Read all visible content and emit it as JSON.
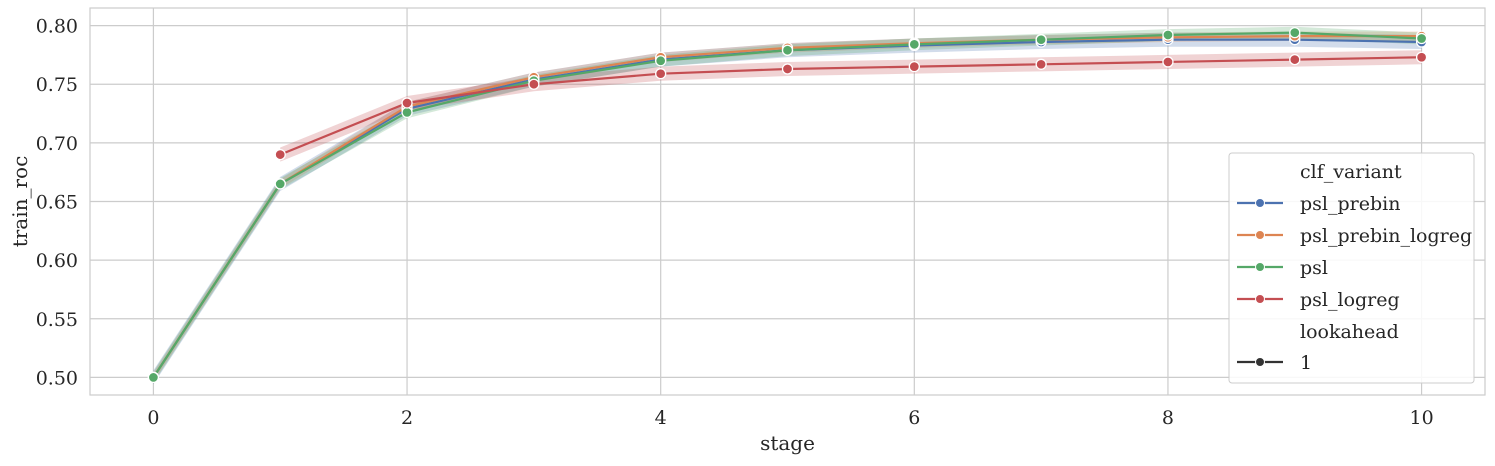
{
  "chart_data": {
    "type": "line",
    "xlabel": "stage",
    "ylabel": "train_roc",
    "xlim": [
      -0.5,
      10.5
    ],
    "ylim": [
      0.485,
      0.815
    ],
    "xticks": [
      0,
      2,
      4,
      6,
      8,
      10
    ],
    "yticks": [
      "0.50",
      "0.55",
      "0.60",
      "0.65",
      "0.70",
      "0.75",
      "0.80"
    ],
    "grid": true,
    "legend": {
      "placement": "lower-right",
      "hue_title": "clf_variant",
      "style_title": "lookahead",
      "style_entries": [
        "1"
      ]
    },
    "series": [
      {
        "name": "psl_prebin",
        "color": "#4c72b0",
        "x": [
          0,
          1,
          2,
          3,
          4,
          5,
          6,
          7,
          8,
          9,
          10
        ],
        "values": [
          0.5,
          0.665,
          0.729,
          0.754,
          0.771,
          0.779,
          0.783,
          0.786,
          0.788,
          0.788,
          0.786
        ],
        "band": 0.006
      },
      {
        "name": "psl_prebin_logreg",
        "color": "#dd8452",
        "x": [
          0,
          1,
          2,
          3,
          4,
          5,
          6,
          7,
          8,
          9,
          10
        ],
        "values": [
          0.5,
          0.665,
          0.731,
          0.756,
          0.773,
          0.781,
          0.785,
          0.788,
          0.79,
          0.791,
          0.791
        ],
        "band": 0.004
      },
      {
        "name": "psl",
        "color": "#55a868",
        "x": [
          0,
          1,
          2,
          3,
          4,
          5,
          6,
          7,
          8,
          9,
          10
        ],
        "values": [
          0.5,
          0.665,
          0.726,
          0.753,
          0.77,
          0.779,
          0.784,
          0.788,
          0.792,
          0.794,
          0.789
        ],
        "band": 0.005
      },
      {
        "name": "psl_logreg",
        "color": "#c44e52",
        "x": [
          1,
          2,
          3,
          4,
          5,
          6,
          7,
          8,
          9,
          10
        ],
        "values": [
          0.69,
          0.734,
          0.75,
          0.759,
          0.763,
          0.765,
          0.767,
          0.769,
          0.771,
          0.773
        ],
        "band": 0.006
      }
    ]
  }
}
